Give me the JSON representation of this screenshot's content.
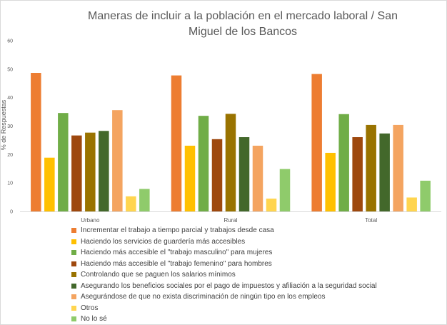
{
  "chart_data": {
    "type": "bar",
    "title": "Maneras de incluir a la población en el mercado laboral / San Miguel de los Bancos",
    "ylabel": "% de Respuestas",
    "xlabel": "",
    "ylim": [
      0,
      60
    ],
    "yticks": [
      0,
      10,
      20,
      30,
      40,
      50,
      60
    ],
    "categories": [
      "Urbano",
      "Rural",
      "Total"
    ],
    "grid": false,
    "legend_position": "bottom",
    "series": [
      {
        "name": "Incrementar el trabajo a tiempo parcial y trabajos desde casa",
        "color": "#ED7D31",
        "values": [
          48.7,
          47.8,
          48.3
        ]
      },
      {
        "name": "Haciendo los servicios de guardería más accesibles",
        "color": "#FFC000",
        "values": [
          18.9,
          23.1,
          20.6
        ]
      },
      {
        "name": "Haciendo más accesible el \"trabajo masculino\" para mujeres",
        "color": "#70AD47",
        "values": [
          34.6,
          33.6,
          34.2
        ]
      },
      {
        "name": "Haciendo más accesible el \"trabajo femenino\" para hombres",
        "color": "#9E480E",
        "values": [
          26.7,
          25.4,
          26.1
        ]
      },
      {
        "name": "Controlando que se paguen los salarios mínimos",
        "color": "#997300",
        "values": [
          27.7,
          34.3,
          30.4
        ]
      },
      {
        "name": "Asegurando los beneficios sociales por el pago de impuestos y afiliación a la seguridad social",
        "color": "#43682B",
        "values": [
          28.3,
          26.1,
          27.4
        ]
      },
      {
        "name": "Asegurándose de que no exista discriminación de ningún tipo en los empleos",
        "color": "#F4A460",
        "values": [
          35.6,
          23.1,
          30.4
        ]
      },
      {
        "name": "Otros",
        "color": "#FFD54F",
        "values": [
          5.3,
          4.5,
          4.9
        ]
      },
      {
        "name": "No lo sé",
        "color": "#8FCB6B",
        "values": [
          7.9,
          14.9,
          10.8
        ]
      }
    ]
  }
}
